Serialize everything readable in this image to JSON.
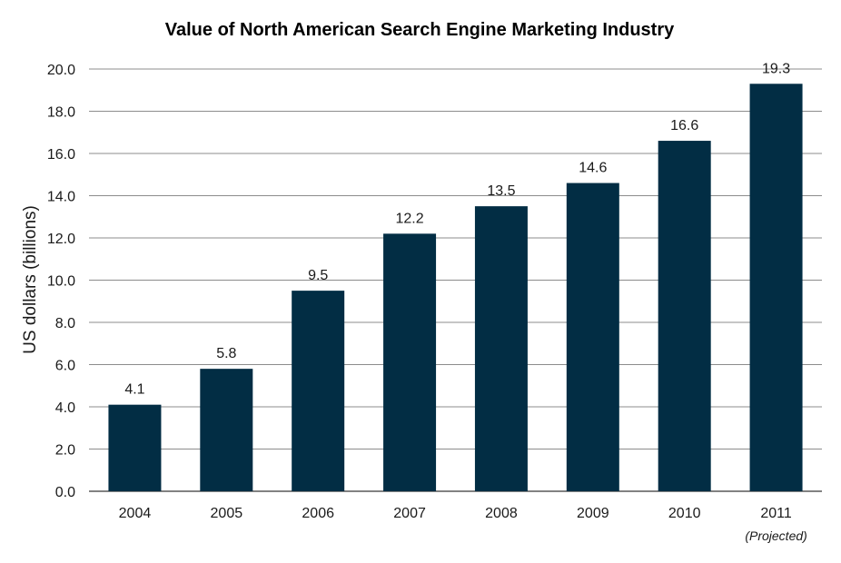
{
  "chart_data": {
    "type": "bar",
    "title": "Value of North American  Search Engine Marketing Industry",
    "xlabel": "",
    "ylabel": "US dollars (billions)",
    "categories": [
      "2004",
      "2005",
      "2006",
      "2007",
      "2008",
      "2009",
      "2010",
      "2011"
    ],
    "category_notes": [
      "",
      "",
      "",
      "",
      "",
      "",
      "",
      "(Projected)"
    ],
    "values": [
      4.1,
      5.8,
      9.5,
      12.2,
      13.5,
      14.6,
      16.6,
      19.3
    ],
    "data_labels": [
      "4.1",
      "5.8",
      "9.5",
      "12.2",
      "13.5",
      "14.6",
      "16.6",
      "19.3"
    ],
    "ylim": [
      0,
      20
    ],
    "yticks": [
      "0.0",
      "2.0",
      "4.0",
      "6.0",
      "8.0",
      "10.0",
      "12.0",
      "14.0",
      "16.0",
      "18.0",
      "20.0"
    ],
    "grid": true,
    "legend": "none",
    "colors": {
      "bar": "#022d44",
      "grid": "#8c8c8c",
      "text": "#1a1a1a"
    }
  }
}
